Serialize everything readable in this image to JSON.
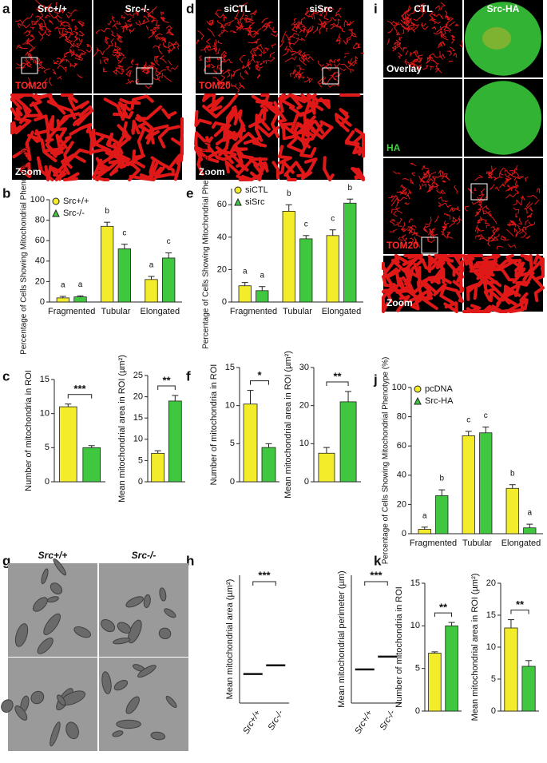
{
  "panel_letters": [
    "a",
    "d",
    "i",
    "b",
    "e",
    "c",
    "f",
    "j",
    "g",
    "h",
    "k"
  ],
  "image_panels": [
    {
      "columns": [
        "Src+/+",
        "Src-/-"
      ],
      "labels": [
        "TOM20",
        "Zoom"
      ]
    },
    {
      "columns": [
        "siCTL",
        "siSrc"
      ],
      "labels": [
        "TOM20",
        "Zoom"
      ]
    },
    {
      "columns": [
        "CTL",
        "Src-HA"
      ],
      "labels": [
        "Overlay",
        "HA",
        "TOM20",
        "Zoom"
      ]
    },
    {
      "columns": [
        "Src+/+",
        "Src-/-"
      ]
    }
  ],
  "chart_data": [
    {
      "type": "grouped_bar",
      "ylabel": "Percentage of Cells Showing Mitochondrial Phenotype (%)",
      "categories": [
        "Fragmented",
        "Tubular",
        "Elongated"
      ],
      "series": [
        {
          "name": "Src+/+",
          "color": "#f2ec2a",
          "values": [
            4,
            74,
            22
          ],
          "errors": [
            1.5,
            4,
            3
          ],
          "letters": [
            "a",
            "b",
            "a"
          ]
        },
        {
          "name": "Src-/-",
          "color": "#3fc73f",
          "values": [
            5,
            52,
            43
          ],
          "errors": [
            1,
            4.5,
            5
          ],
          "letters": [
            "a",
            "c",
            "c"
          ]
        }
      ],
      "ylim": [
        0,
        100
      ],
      "yticks": [
        0,
        20,
        40,
        60,
        80,
        100
      ]
    },
    {
      "type": "bar",
      "ylabel": "Number of mitochondria in ROI",
      "values": [
        11,
        5
      ],
      "errors": [
        0.4,
        0.3
      ],
      "colors": [
        "#f2ec2a",
        "#3fc73f"
      ],
      "ylim": [
        0,
        15
      ],
      "yticks": [
        0,
        5,
        10,
        15
      ],
      "significance": "***"
    },
    {
      "type": "bar",
      "ylabel": "Mean mitochondrial area in ROI (µm²)",
      "values": [
        6.7,
        19
      ],
      "errors": [
        0.6,
        1.3
      ],
      "colors": [
        "#f2ec2a",
        "#3fc73f"
      ],
      "ylim": [
        0,
        25
      ],
      "yticks": [
        0,
        5,
        10,
        15,
        20,
        25
      ],
      "significance": "**"
    },
    {
      "type": "grouped_bar",
      "ylabel": "Percentage of Cells Showing Mitochondrial Phenotype (%)",
      "categories": [
        "Fragmented",
        "Tubular",
        "Elongated"
      ],
      "series": [
        {
          "name": "siCTL",
          "color": "#f2ec2a",
          "values": [
            10,
            56,
            41
          ],
          "errors": [
            2,
            4,
            3.5
          ],
          "letters": [
            "a",
            "b",
            "c"
          ]
        },
        {
          "name": "siSrc",
          "color": "#3fc73f",
          "values": [
            7,
            39,
            61
          ],
          "errors": [
            2.5,
            2,
            2.5
          ],
          "letters": [
            "a",
            "c",
            "b"
          ]
        }
      ],
      "ylim": [
        0,
        70
      ],
      "yticks": [
        0,
        20,
        40,
        60
      ]
    },
    {
      "type": "bar",
      "ylabel": "Number of mitochondria in ROI",
      "values": [
        10.2,
        4.5
      ],
      "errors": [
        1.8,
        0.5
      ],
      "colors": [
        "#f2ec2a",
        "#3fc73f"
      ],
      "ylim": [
        0,
        15
      ],
      "yticks": [
        0,
        5,
        10,
        15
      ],
      "significance": "*"
    },
    {
      "type": "bar",
      "ylabel": "Mean mitochondrial area in ROI (µm²)",
      "values": [
        7.5,
        21
      ],
      "errors": [
        1.5,
        2.7
      ],
      "colors": [
        "#f2ec2a",
        "#3fc73f"
      ],
      "ylim": [
        0,
        30
      ],
      "yticks": [
        0,
        10,
        20,
        30
      ],
      "significance": "**"
    },
    {
      "type": "grouped_bar",
      "ylabel": "Percentage of Cells Showing Mitochondrial Phenotype (%)",
      "categories": [
        "Fragmented",
        "Tubular",
        "Elongated"
      ],
      "series": [
        {
          "name": "pcDNA",
          "color": "#f2ec2a",
          "values": [
            3,
            67,
            31
          ],
          "errors": [
            1.5,
            3,
            2.5
          ],
          "letters": [
            "a",
            "c",
            "b"
          ]
        },
        {
          "name": "Src-HA",
          "color": "#3fc73f",
          "values": [
            26,
            69,
            4
          ],
          "errors": [
            4,
            4,
            2.5
          ],
          "letters": [
            "b",
            "c",
            "a"
          ]
        }
      ],
      "ylim": [
        0,
        100
      ],
      "yticks": [
        0,
        20,
        40,
        60,
        80,
        100
      ]
    },
    {
      "type": "strip",
      "ylabel": "Mean mitochondrial area (µm²)",
      "categories": [
        "Src+/+",
        "Src-/-"
      ],
      "values": [
        0.5,
        0.65
      ],
      "colors": [
        "#b5a23a",
        "#2f8f2f"
      ],
      "ylim": [
        0,
        2.2
      ],
      "significance": "***"
    },
    {
      "type": "strip",
      "ylabel": "Mean mitochondrial perimeter (µm)",
      "categories": [
        "Src+/+",
        "Src-/-"
      ],
      "values": [
        2.9,
        4.0
      ],
      "colors": [
        "#b5a23a",
        "#2f8f2f"
      ],
      "ylim": [
        0,
        11
      ],
      "significance": "***"
    },
    {
      "type": "bar",
      "ylabel": "Number of mitochondria in ROI",
      "values": [
        6.8,
        10
      ],
      "errors": [
        0.15,
        0.4
      ],
      "colors": [
        "#f2ec2a",
        "#3fc73f"
      ],
      "ylim": [
        0,
        15
      ],
      "yticks": [
        0,
        5,
        10,
        15
      ],
      "significance": "**"
    },
    {
      "type": "bar",
      "ylabel": "Mean mitochondrial area in ROI (µm²)",
      "values": [
        13,
        7
      ],
      "errors": [
        1.3,
        0.9
      ],
      "colors": [
        "#f2ec2a",
        "#3fc73f"
      ],
      "ylim": [
        0,
        20
      ],
      "yticks": [
        0,
        5,
        10,
        15,
        20
      ],
      "significance": "**"
    }
  ]
}
